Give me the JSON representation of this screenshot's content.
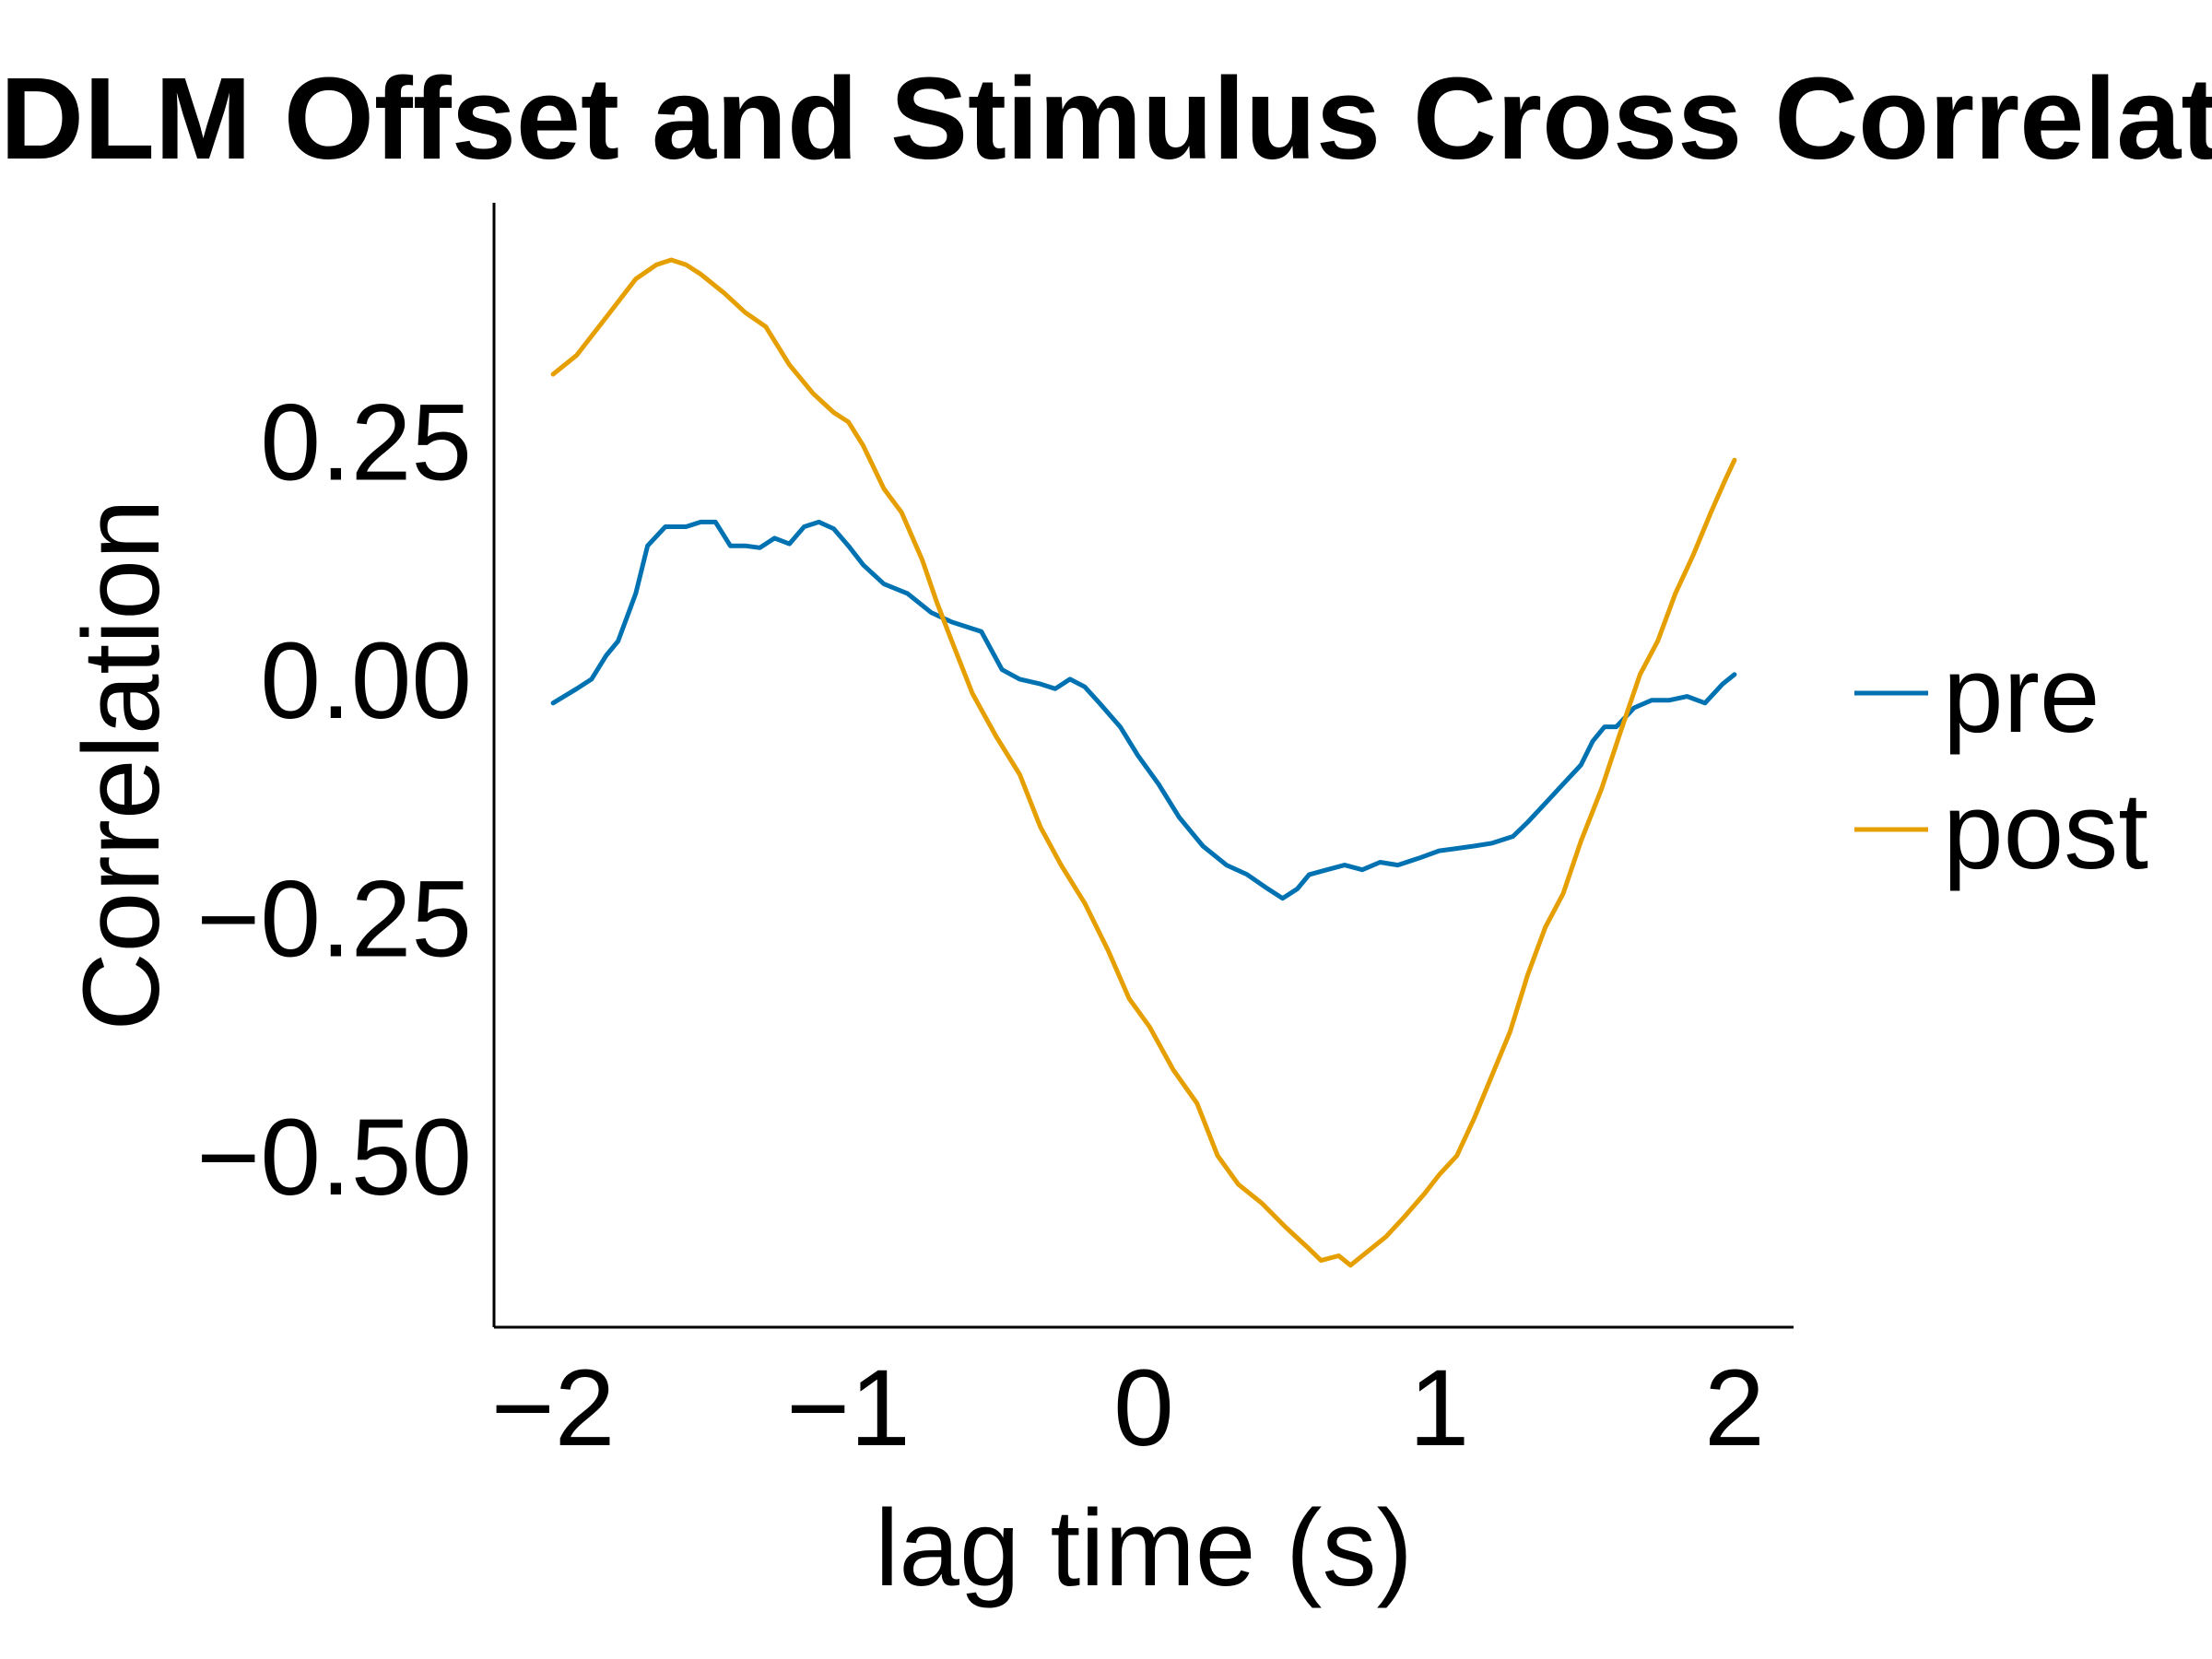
{
  "chart_data": {
    "type": "line",
    "title": "DLM Offset and Stimulus Cross Correlatio",
    "xlabel": "lag time (s)",
    "ylabel": "Correlation",
    "xlim": [
      -2.2,
      2.2
    ],
    "ylim": [
      -0.68,
      0.5
    ],
    "xticks": [
      -2,
      -1,
      0,
      1,
      2
    ],
    "xtick_labels": [
      "−2",
      "−1",
      "0",
      "1",
      "2"
    ],
    "yticks": [
      0.25,
      0.0,
      -0.25,
      -0.5
    ],
    "ytick_labels": [
      "0.25",
      "0.00",
      "−0.25",
      "−0.50"
    ],
    "grid": false,
    "legend_position": "right",
    "series": [
      {
        "name": "pre",
        "color": "#0072b2",
        "points": [
          [
            -2.0,
            -0.025
          ],
          [
            -1.92,
            -0.01
          ],
          [
            -1.87,
            0.0
          ],
          [
            -1.82,
            0.025
          ],
          [
            -1.78,
            0.04
          ],
          [
            -1.72,
            0.09
          ],
          [
            -1.68,
            0.14
          ],
          [
            -1.62,
            0.16
          ],
          [
            -1.55,
            0.16
          ],
          [
            -1.5,
            0.165
          ],
          [
            -1.45,
            0.165
          ],
          [
            -1.4,
            0.14
          ],
          [
            -1.35,
            0.14
          ],
          [
            -1.3,
            0.138
          ],
          [
            -1.25,
            0.148
          ],
          [
            -1.2,
            0.142
          ],
          [
            -1.15,
            0.16
          ],
          [
            -1.1,
            0.165
          ],
          [
            -1.05,
            0.158
          ],
          [
            -1.0,
            0.14
          ],
          [
            -0.95,
            0.12
          ],
          [
            -0.88,
            0.1
          ],
          [
            -0.8,
            0.09
          ],
          [
            -0.72,
            0.07
          ],
          [
            -0.65,
            0.06
          ],
          [
            -0.55,
            0.05
          ],
          [
            -0.48,
            0.01
          ],
          [
            -0.42,
            0.0
          ],
          [
            -0.35,
            -0.005
          ],
          [
            -0.3,
            -0.01
          ],
          [
            -0.25,
            0.0
          ],
          [
            -0.2,
            -0.008
          ],
          [
            -0.15,
            -0.025
          ],
          [
            -0.08,
            -0.05
          ],
          [
            -0.02,
            -0.08
          ],
          [
            0.05,
            -0.11
          ],
          [
            0.12,
            -0.145
          ],
          [
            0.2,
            -0.175
          ],
          [
            0.28,
            -0.195
          ],
          [
            0.35,
            -0.205
          ],
          [
            0.42,
            -0.22
          ],
          [
            0.47,
            -0.23
          ],
          [
            0.52,
            -0.22
          ],
          [
            0.56,
            -0.205
          ],
          [
            0.62,
            -0.2
          ],
          [
            0.68,
            -0.195
          ],
          [
            0.74,
            -0.2
          ],
          [
            0.8,
            -0.192
          ],
          [
            0.86,
            -0.195
          ],
          [
            0.93,
            -0.188
          ],
          [
            1.0,
            -0.18
          ],
          [
            1.05,
            -0.178
          ],
          [
            1.12,
            -0.175
          ],
          [
            1.18,
            -0.172
          ],
          [
            1.25,
            -0.165
          ],
          [
            1.3,
            -0.15
          ],
          [
            1.36,
            -0.13
          ],
          [
            1.42,
            -0.11
          ],
          [
            1.48,
            -0.09
          ],
          [
            1.52,
            -0.065
          ],
          [
            1.56,
            -0.05
          ],
          [
            1.6,
            -0.05
          ],
          [
            1.66,
            -0.03
          ],
          [
            1.72,
            -0.022
          ],
          [
            1.78,
            -0.022
          ],
          [
            1.84,
            -0.018
          ],
          [
            1.9,
            -0.025
          ],
          [
            1.96,
            -0.005
          ],
          [
            2.0,
            0.005
          ]
        ]
      },
      {
        "name": "post",
        "color": "#e69f00",
        "points": [
          [
            -2.0,
            0.32
          ],
          [
            -1.92,
            0.34
          ],
          [
            -1.82,
            0.38
          ],
          [
            -1.72,
            0.42
          ],
          [
            -1.65,
            0.435
          ],
          [
            -1.6,
            0.44
          ],
          [
            -1.55,
            0.435
          ],
          [
            -1.5,
            0.425
          ],
          [
            -1.42,
            0.405
          ],
          [
            -1.35,
            0.385
          ],
          [
            -1.28,
            0.37
          ],
          [
            -1.2,
            0.33
          ],
          [
            -1.12,
            0.3
          ],
          [
            -1.05,
            0.28
          ],
          [
            -1.0,
            0.27
          ],
          [
            -0.95,
            0.245
          ],
          [
            -0.88,
            0.2
          ],
          [
            -0.82,
            0.175
          ],
          [
            -0.75,
            0.125
          ],
          [
            -0.7,
            0.08
          ],
          [
            -0.65,
            0.04
          ],
          [
            -0.58,
            -0.015
          ],
          [
            -0.5,
            -0.06
          ],
          [
            -0.42,
            -0.1
          ],
          [
            -0.35,
            -0.155
          ],
          [
            -0.28,
            -0.195
          ],
          [
            -0.2,
            -0.235
          ],
          [
            -0.12,
            -0.285
          ],
          [
            -0.05,
            -0.335
          ],
          [
            0.02,
            -0.365
          ],
          [
            0.1,
            -0.41
          ],
          [
            0.18,
            -0.445
          ],
          [
            0.25,
            -0.5
          ],
          [
            0.32,
            -0.53
          ],
          [
            0.4,
            -0.55
          ],
          [
            0.48,
            -0.575
          ],
          [
            0.55,
            -0.595
          ],
          [
            0.6,
            -0.61
          ],
          [
            0.66,
            -0.605
          ],
          [
            0.7,
            -0.615
          ],
          [
            0.76,
            -0.6
          ],
          [
            0.82,
            -0.585
          ],
          [
            0.88,
            -0.565
          ],
          [
            0.95,
            -0.54
          ],
          [
            1.0,
            -0.52
          ],
          [
            1.06,
            -0.5
          ],
          [
            1.12,
            -0.46
          ],
          [
            1.18,
            -0.415
          ],
          [
            1.24,
            -0.37
          ],
          [
            1.3,
            -0.31
          ],
          [
            1.36,
            -0.26
          ],
          [
            1.42,
            -0.225
          ],
          [
            1.48,
            -0.17
          ],
          [
            1.55,
            -0.115
          ],
          [
            1.62,
            -0.05
          ],
          [
            1.68,
            0.005
          ],
          [
            1.74,
            0.04
          ],
          [
            1.8,
            0.09
          ],
          [
            1.86,
            0.13
          ],
          [
            1.92,
            0.175
          ],
          [
            1.97,
            0.21
          ],
          [
            2.0,
            0.23
          ]
        ]
      }
    ]
  }
}
